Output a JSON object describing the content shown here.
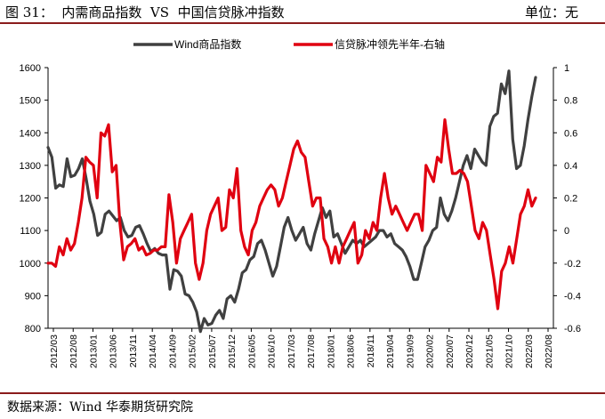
{
  "header": {
    "figure_title": "图 31：  内需商品指数  VS  中国信贷脉冲指数",
    "unit": "单位：无"
  },
  "footer": {
    "source": "数据来源：Wind 华泰期货研究院"
  },
  "colors": {
    "series1": "#404040",
    "series2": "#e00010",
    "header_rule": "#8a1c1c"
  },
  "chart_data": {
    "type": "line",
    "title": "",
    "legend_position": "top",
    "grid": false,
    "x_labels": [
      "2012/03",
      "2012/08",
      "2013/01",
      "2013/06",
      "2013/11",
      "2014/04",
      "2014/09",
      "2015/02",
      "2015/07",
      "2015/12",
      "2016/05",
      "2016/10",
      "2017/03",
      "2017/08",
      "2018/01",
      "2018/06",
      "2018/11",
      "2019/04",
      "2019/09",
      "2020/02",
      "2020/07",
      "2020/12",
      "2021/05",
      "2021/10",
      "2022/03",
      "2022/08"
    ],
    "y_left": {
      "min": 800,
      "max": 1600,
      "ticks": [
        800,
        900,
        1000,
        1100,
        1200,
        1300,
        1400,
        1500,
        1600
      ]
    },
    "y_right": {
      "min": -0.6,
      "max": 1.0,
      "ticks": [
        "-0.6",
        "-0.4",
        "-0.2",
        "0",
        "0.2",
        "0.4",
        "0.6",
        "0.8",
        "1"
      ]
    },
    "series": [
      {
        "name": "Wind商品指数",
        "axis": "left",
        "values": [
          1355,
          1325,
          1230,
          1240,
          1235,
          1320,
          1265,
          1270,
          1290,
          1320,
          1260,
          1190,
          1150,
          1085,
          1095,
          1150,
          1160,
          1145,
          1130,
          1140,
          1100,
          1080,
          1085,
          1110,
          1115,
          1090,
          1060,
          1035,
          1045,
          1030,
          1025,
          1025,
          920,
          980,
          975,
          960,
          905,
          900,
          880,
          850,
          790,
          830,
          810,
          815,
          840,
          855,
          830,
          890,
          900,
          880,
          920,
          970,
          980,
          1010,
          1020,
          1060,
          1070,
          1040,
          1000,
          960,
          990,
          1050,
          1110,
          1140,
          1100,
          1070,
          1090,
          1110,
          1060,
          1040,
          1090,
          1130,
          1170,
          1140,
          1160,
          1080,
          1090,
          1060,
          1030,
          1050,
          1070,
          1060,
          1070,
          1050,
          1060,
          1070,
          1080,
          1100,
          1100,
          1080,
          1090,
          1060,
          1050,
          1040,
          1020,
          990,
          950,
          950,
          1000,
          1050,
          1070,
          1100,
          1110,
          1200,
          1150,
          1130,
          1160,
          1200,
          1250,
          1300,
          1330,
          1290,
          1350,
          1330,
          1310,
          1300,
          1420,
          1450,
          1460,
          1550,
          1520,
          1590,
          1380,
          1290,
          1300,
          1360,
          1440,
          1510,
          1570
        ]
      },
      {
        "name": "信贷脉冲领先半年-右轴",
        "axis": "right",
        "values": [
          -0.2,
          -0.2,
          -0.22,
          -0.1,
          -0.15,
          -0.05,
          -0.12,
          -0.08,
          0.05,
          0.2,
          0.45,
          0.42,
          0.4,
          0.2,
          0.6,
          0.58,
          0.65,
          0.36,
          0.4,
          0.05,
          -0.18,
          -0.1,
          -0.08,
          -0.05,
          -0.12,
          -0.1,
          -0.15,
          -0.14,
          -0.12,
          -0.12,
          -0.1,
          -0.1,
          0.22,
          0.05,
          -0.2,
          -0.05,
          0.0,
          0.05,
          0.1,
          -0.2,
          -0.3,
          -0.2,
          0.0,
          0.1,
          0.15,
          0.2,
          0.0,
          0.02,
          0.25,
          0.2,
          0.38,
          0.0,
          -0.1,
          -0.15,
          0.0,
          0.05,
          0.15,
          0.2,
          0.25,
          0.28,
          0.25,
          0.15,
          0.2,
          0.3,
          0.4,
          0.5,
          0.55,
          0.48,
          0.45,
          0.3,
          0.15,
          0.2,
          0.2,
          -0.05,
          -0.1,
          -0.2,
          -0.1,
          -0.2,
          -0.1,
          -0.05,
          0.0,
          0.05,
          -0.2,
          -0.15,
          0.0,
          -0.05,
          0.05,
          0.0,
          0.2,
          0.35,
          0.2,
          0.1,
          0.15,
          0.1,
          0.05,
          0.0,
          0.05,
          0.1,
          0.1,
          0.0,
          0.4,
          0.35,
          0.3,
          0.45,
          0.42,
          0.68,
          0.5,
          0.35,
          0.35,
          0.37,
          0.35,
          0.3,
          0.15,
          0.0,
          -0.05,
          0.05,
          0.0,
          -0.15,
          -0.3,
          -0.48,
          -0.25,
          -0.2,
          -0.1,
          -0.2,
          -0.05,
          0.1,
          0.15,
          0.25,
          0.15,
          0.2
        ]
      }
    ]
  }
}
